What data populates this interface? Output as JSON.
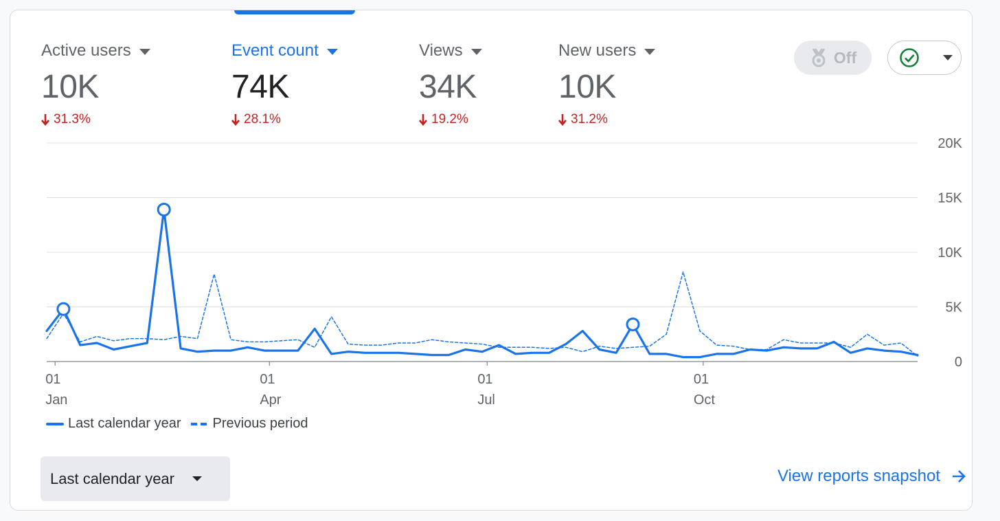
{
  "metrics": [
    {
      "label": "Active users",
      "value": "10K",
      "delta": "31.3%",
      "active": false
    },
    {
      "label": "Event count",
      "value": "74K",
      "delta": "28.1%",
      "active": true
    },
    {
      "label": "Views",
      "value": "34K",
      "delta": "19.2%",
      "active": false
    },
    {
      "label": "New users",
      "value": "10K",
      "delta": "31.2%",
      "active": false
    }
  ],
  "controls": {
    "off_toggle_label": "Off",
    "off_toggle_icon": "medal-icon",
    "status_icon": "check-circle-icon"
  },
  "chart_data": {
    "type": "line",
    "y_ticks": [
      "20K",
      "15K",
      "10K",
      "5K",
      "0"
    ],
    "ylim": [
      0,
      20000
    ],
    "x_ticks": [
      {
        "day": "01",
        "month": "Jan",
        "index": 0.5
      },
      {
        "day": "01",
        "month": "Apr",
        "index": 13.3
      },
      {
        "day": "01",
        "month": "Jul",
        "index": 26.3
      },
      {
        "day": "01",
        "month": "Oct",
        "index": 39.2
      }
    ],
    "grid": true,
    "legend": "bottom-left",
    "series": [
      {
        "name": "Last calendar year",
        "style": "solid",
        "color": "#1a73e8",
        "values": [
          2800,
          4800,
          1500,
          1700,
          1100,
          1400,
          1700,
          13900,
          1200,
          900,
          1000,
          1000,
          1300,
          1000,
          1000,
          1000,
          3000,
          700,
          900,
          800,
          800,
          800,
          700,
          600,
          600,
          1100,
          900,
          1500,
          700,
          800,
          800,
          1600,
          2800,
          1100,
          800,
          3400,
          700,
          700,
          400,
          400,
          700,
          700,
          1100,
          1000,
          1300,
          1200,
          1200,
          1800,
          800,
          1200,
          1000,
          900,
          600
        ],
        "highlighted_points": [
          1,
          7,
          35
        ]
      },
      {
        "name": "Previous period",
        "style": "dashed",
        "color": "#1a73e8",
        "values": [
          2100,
          4400,
          1800,
          2300,
          1900,
          2100,
          2100,
          2000,
          2300,
          2100,
          8000,
          2000,
          1800,
          1800,
          1900,
          2000,
          1300,
          4100,
          1600,
          1500,
          1500,
          1700,
          1700,
          2000,
          1800,
          1700,
          1600,
          1300,
          1300,
          1300,
          1200,
          1300,
          900,
          1400,
          1200,
          1300,
          1400,
          2500,
          8200,
          2800,
          1500,
          1400,
          1100,
          1100,
          2000,
          1700,
          1700,
          1700,
          1300,
          2500,
          1500,
          1700,
          500
        ]
      }
    ]
  },
  "footer": {
    "range_label": "Last calendar year",
    "snapshot_link": "View reports snapshot"
  }
}
